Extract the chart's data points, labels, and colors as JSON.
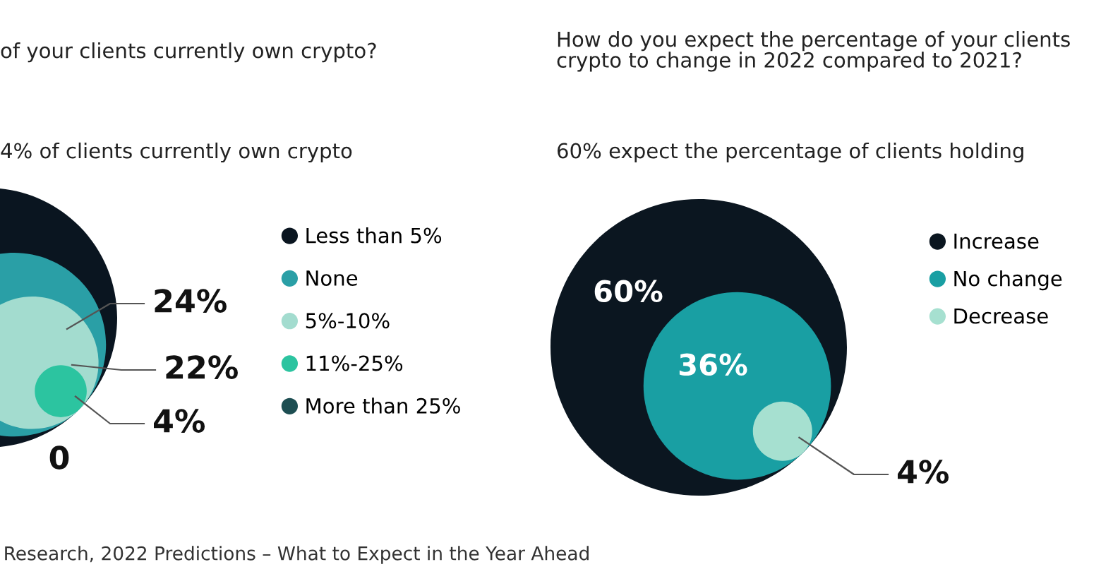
{
  "chart_data": [
    {
      "type": "other",
      "title": "of your clients currently own crypto?",
      "subtitle": "4% of clients currently own crypto",
      "categories": [
        "Less than 5%",
        "None",
        "5%-10%",
        "11%-25%",
        "More than 25%"
      ],
      "values": [
        null,
        24,
        22,
        4,
        0
      ],
      "value_labels": [
        null,
        "24%",
        "22%",
        "4%",
        "0"
      ],
      "colors": [
        "#0a1520",
        "#2a9fa6",
        "#a3dccf",
        "#2cc4a0",
        "#1d4e52"
      ],
      "annotations": [
        "Research, 2022 Predictions – What to Expect in the Year Ahead"
      ]
    },
    {
      "type": "other",
      "title": "How do you expect the percentage of your clients\ncrypto to change in 2022 compared to 2021?",
      "subtitle": "60% expect the percentage of clients holding",
      "categories": [
        "Increase",
        "No change",
        "Decrease"
      ],
      "values": [
        60,
        36,
        4
      ],
      "value_labels": [
        "60%",
        "36%",
        "4%"
      ],
      "colors": [
        "#0b1620",
        "#199fa3",
        "#a6e0d0"
      ]
    }
  ]
}
